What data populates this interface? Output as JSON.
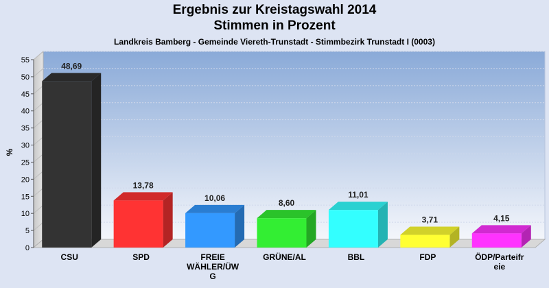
{
  "chart_data": {
    "type": "bar",
    "title": "Ergebnis zur Kreistagswahl 2014",
    "title_line2": "Stimmen in Prozent",
    "subtitle": "Landkreis Bamberg - Gemeinde Viereth-Trunstadt - Stimmbezirk Trunstadt I (0003)",
    "ylabel": "%",
    "xlabel": "",
    "ylim": [
      0,
      55
    ],
    "yticks": [
      0,
      5,
      10,
      15,
      20,
      25,
      30,
      35,
      40,
      45,
      50,
      55
    ],
    "grid": true,
    "categories": [
      "CSU",
      "SPD",
      "FREIE WÄHLER/ÜWG",
      "GRÜNE/AL",
      "BBL",
      "FDP",
      "ÖDP/Parteifreie"
    ],
    "category_lines": [
      [
        "CSU"
      ],
      [
        "SPD"
      ],
      [
        "FREIE",
        "WÄHLER/ÜW",
        "G"
      ],
      [
        "GRÜNE/AL"
      ],
      [
        "BBL"
      ],
      [
        "FDP"
      ],
      [
        "ÖDP/Parteifr",
        "eie"
      ]
    ],
    "values": [
      48.69,
      13.78,
      10.06,
      8.6,
      11.01,
      3.71,
      4.15
    ],
    "value_labels": [
      "48,69",
      "13,78",
      "10,06",
      "8,60",
      "11,01",
      "3,71",
      "4,15"
    ],
    "colors": [
      "#333333",
      "#ff3333",
      "#3399ff",
      "#33ee33",
      "#33ffff",
      "#ffff33",
      "#ff33ff"
    ]
  }
}
